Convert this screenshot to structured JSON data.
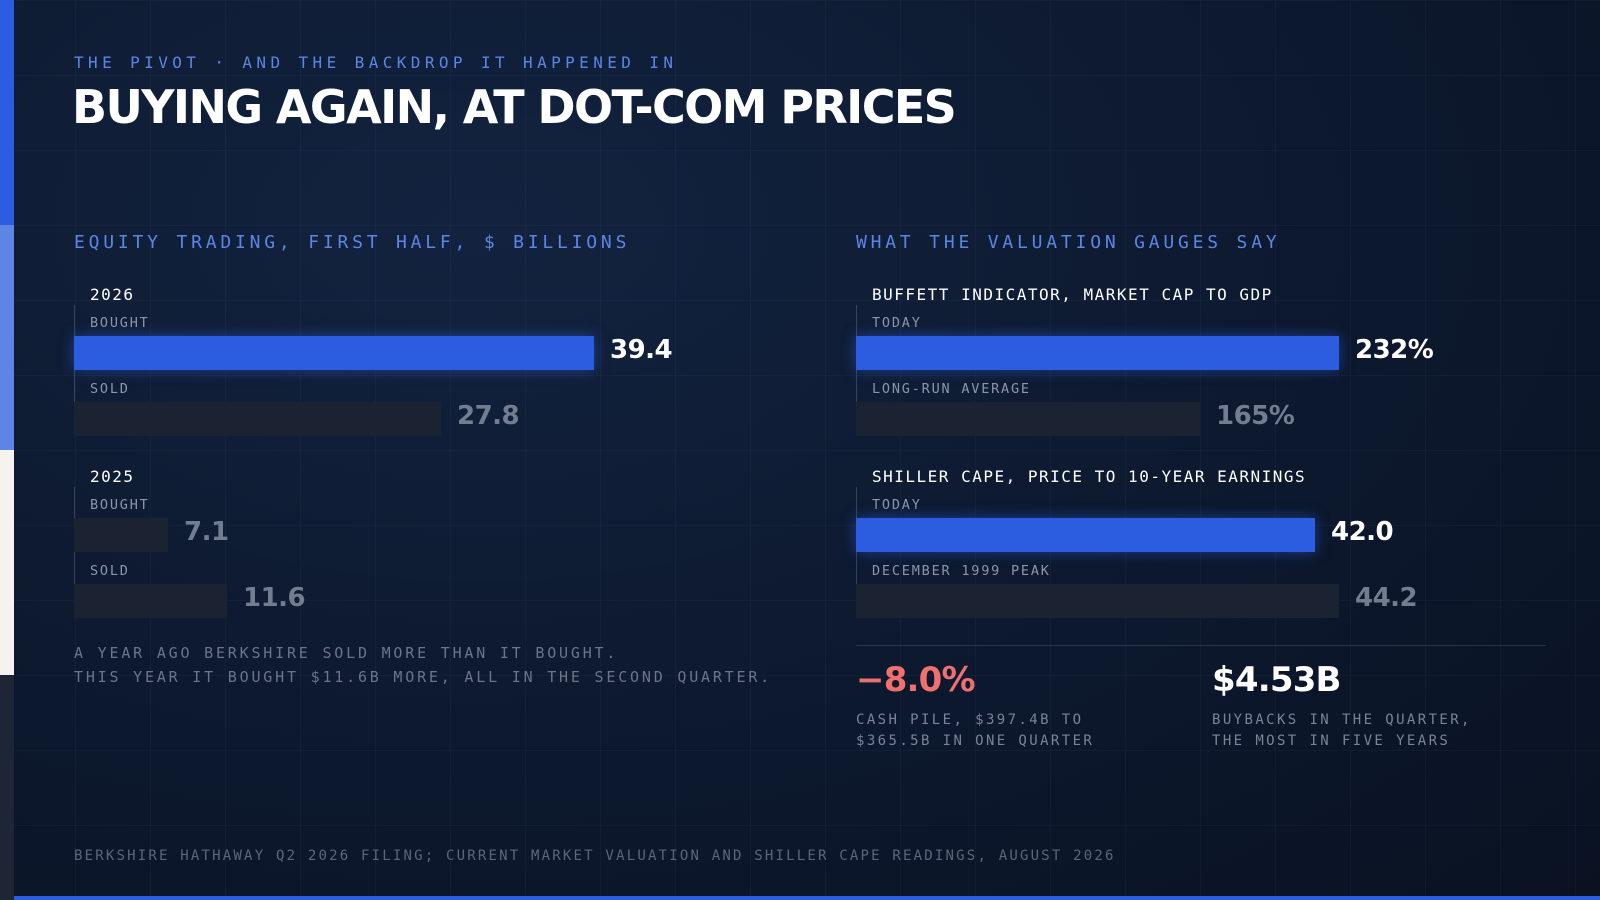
{
  "kicker": "THE PIVOT · AND THE BACKDROP IT HAPPENED IN",
  "title": "BUYING AGAIN, AT DOT-COM PRICES",
  "colors": {
    "accent": "#2c5ce0",
    "muted_bar": "#1b2232",
    "negative": "#f07070",
    "side_strip": [
      "#2c5ce0",
      "#5d85e6",
      "#f6f3ee",
      "#1e2535"
    ]
  },
  "left_panel": {
    "heading": "EQUITY TRADING, FIRST HALF, $ BILLIONS",
    "note_lines": [
      "A YEAR AGO BERKSHIRE SOLD MORE THAN IT BOUGHT.",
      "THIS YEAR IT BOUGHT $11.6B MORE, ALL IN THE SECOND QUARTER."
    ]
  },
  "right_panel": {
    "heading": "WHAT THE VALUATION GAUGES SAY"
  },
  "stats": [
    {
      "value": "−8.0%",
      "caption_lines": [
        "CASH PILE, $397.4B TO",
        "$365.5B IN ONE QUARTER"
      ],
      "color": "#f07070"
    },
    {
      "value": "$4.53B",
      "caption_lines": [
        "BUYBACKS IN THE QUARTER,",
        "THE MOST IN FIVE YEARS"
      ],
      "color": "#ffffff"
    }
  ],
  "source": "BERKSHIRE HATHAWAY Q2 2026 FILING; CURRENT MARKET VALUATION AND SHILLER CAPE READINGS, AUGUST 2026",
  "chart_data": [
    {
      "type": "bar",
      "orientation": "horizontal",
      "title": "EQUITY TRADING, FIRST HALF, $ BILLIONS",
      "groups": [
        {
          "label": "2026",
          "rows": [
            {
              "label": "BOUGHT",
              "value": 39.4,
              "display": "39.4",
              "highlight": true
            },
            {
              "label": "SOLD",
              "value": 27.8,
              "display": "27.8",
              "highlight": false
            }
          ]
        },
        {
          "label": "2025",
          "rows": [
            {
              "label": "BOUGHT",
              "value": 7.1,
              "display": "7.1",
              "highlight": false
            },
            {
              "label": "SOLD",
              "value": 11.6,
              "display": "11.6",
              "highlight": false
            }
          ]
        }
      ],
      "xlim": [
        0,
        39.4
      ]
    },
    {
      "type": "bar",
      "orientation": "horizontal",
      "title": "WHAT THE VALUATION GAUGES SAY",
      "groups": [
        {
          "label": "BUFFETT INDICATOR, MARKET CAP TO GDP",
          "xlim": [
            0,
            232
          ],
          "rows": [
            {
              "label": "TODAY",
              "value": 232,
              "display": "232%",
              "highlight": true
            },
            {
              "label": "LONG-RUN AVERAGE",
              "value": 165,
              "display": "165%",
              "highlight": false
            }
          ]
        },
        {
          "label": "SHILLER CAPE, PRICE TO 10-YEAR EARNINGS",
          "xlim": [
            0,
            44.2
          ],
          "rows": [
            {
              "label": "TODAY",
              "value": 42.0,
              "display": "42.0",
              "highlight": true
            },
            {
              "label": "DECEMBER 1999 PEAK",
              "value": 44.2,
              "display": "44.2",
              "highlight": false
            }
          ]
        }
      ]
    }
  ]
}
